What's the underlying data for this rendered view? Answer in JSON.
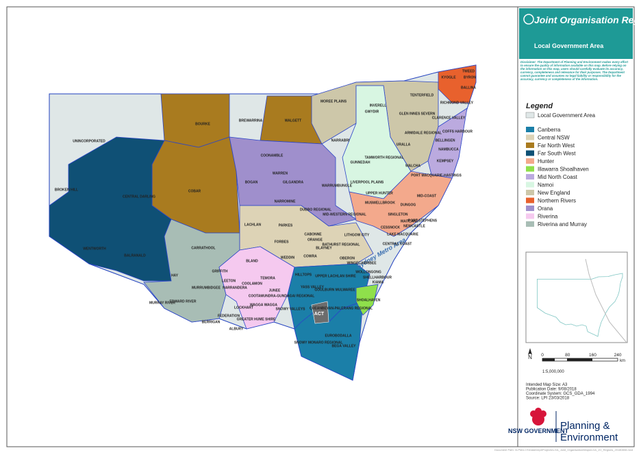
{
  "header": {
    "title": "Joint Organisation Regions",
    "subtitle": "Local Government Area",
    "disclaimer": "Disclaimer: The Department of Planning and Environment makes every effort to ensure the quality of information available on this map. Before relying on the information on this map, users should carefully evaluate its accuracy, currency, completeness and relevance for their purposes. The Department cannot guarantee and assumes no legal liability or responsibility for the accuracy, currency or completeness of the information."
  },
  "legend": {
    "title": "Legend",
    "base": {
      "label": "Local Government Area",
      "color": "#dfe7e7"
    },
    "items": [
      {
        "label": "Canberra",
        "color": "#1b7fa8"
      },
      {
        "label": "Central NSW",
        "color": "#ddd3b6"
      },
      {
        "label": "Far North West",
        "color": "#a97b1f"
      },
      {
        "label": "Far South West",
        "color": "#0f5075"
      },
      {
        "label": "Hunter",
        "color": "#f3a98c"
      },
      {
        "label": "Illawarra Shoalhaven",
        "color": "#8fe04b"
      },
      {
        "label": "Mid North Coast",
        "color": "#bbaadf"
      },
      {
        "label": "Namoi",
        "color": "#d8f6e2"
      },
      {
        "label": "New England",
        "color": "#cdc7a9"
      },
      {
        "label": "Northern Rivers",
        "color": "#e8612d"
      },
      {
        "label": "Orana",
        "color": "#9f8fcc"
      },
      {
        "label": "Riverina",
        "color": "#f5c9ef"
      },
      {
        "label": "Riverina and Murray",
        "color": "#a8bdb5"
      }
    ]
  },
  "map": {
    "sydney": "Sydney Metro Area",
    "act": "ACT",
    "labels": [
      "UNINCORPORATED",
      "BOURKE",
      "BREWARRINA",
      "WALGETT",
      "MOREE PLAINS",
      "INVERELL",
      "TENTERFIELD",
      "KYOGLE",
      "TWEED",
      "BYRON",
      "BALLINA",
      "RICHMOND VALLEY",
      "CLARENCE VALLEY",
      "GLEN INNES SEVERN",
      "GWYDIR",
      "NARRABRI",
      "ARMIDALE REGIONAL",
      "URALLA",
      "WALCHA",
      "TAMWORTH REGIONAL",
      "GUNNEDAH",
      "LIVERPOOL PLAINS",
      "COFFS HARBOUR",
      "BELLINGEN",
      "NAMBUCCA",
      "KEMPSEY",
      "PORT MACQUARIE-HASTINGS",
      "MID-COAST",
      "UPPER HUNTER",
      "MUSWELLBROOK",
      "DUNGOG",
      "SINGLETON",
      "MAITLAND",
      "PORT STEPHENS",
      "CESSNOCK",
      "NEWCASTLE",
      "LAKE MACQUARIE",
      "CENTRAL COAST",
      "COONAMBLE",
      "BOGAN",
      "WARREN",
      "GILGANDRA",
      "WARRUMBUNGLE",
      "NARROMINE",
      "DUBBO REGIONAL",
      "MID-WESTERN REGIONAL",
      "BROKEN HILL",
      "CENTRAL DARLING",
      "COBAR",
      "WENTWORTH",
      "BALRANALD",
      "CARRATHOOL",
      "HAY",
      "LACHLAN",
      "PARKES",
      "FORBES",
      "CABONNE",
      "ORANGE",
      "BLAYNEY",
      "BATHURST REGIONAL",
      "LITHGOW CITY",
      "OBERON",
      "WEDDIN",
      "COWRA",
      "BLAND",
      "GRIFFITH",
      "LEETON",
      "MURRUMBIDGEE",
      "NARRANDERA",
      "COOLAMON",
      "TEMORA",
      "JUNEE",
      "HILLTOPS",
      "YASS VALLEY",
      "UPPER LACHLAN SHIRE",
      "GOULBURN MULWAREE",
      "WINGECARRIBEE",
      "WOLLONGONG",
      "SHELLHARBOUR",
      "KIAMA",
      "SHOALHAVEN",
      "QUEANBEYAN-PALERANG REGIONAL",
      "EUROBODALLA",
      "BEGA VALLEY",
      "SNOWY MONARO REGIONAL",
      "SNOWY VALLEYS",
      "COOTAMUNDRA-GUNDAGAI REGIONAL",
      "WAGGA WAGGA",
      "LOCKHART",
      "GREATER HUME SHIRE",
      "ALBURY",
      "FEDERATION",
      "BERRIGAN",
      "EDWARD RIVER",
      "MURRAY RIVER"
    ]
  },
  "scale": {
    "north": "N",
    "ticks": [
      "0",
      "80",
      "160",
      "240"
    ],
    "unit": "km",
    "ratio": "1:5,000,000"
  },
  "info": [
    "Intended Map Size: A3",
    "Publication Date: 9/08/2018",
    "Coordinate System: GCS_GDA_1994",
    "Source: LPI 23/03/2018"
  ],
  "logo": {
    "gov": "NSW GOVERNMENT",
    "line1": "Planning &",
    "line2": "Environment"
  },
  "footer": "Document Path: \\\\LPMA.CS\\Data\\Dept\\Projects\\LGA_Joint_Organisation\\Maps\\LGA_JO_Regions_20180808.mxd"
}
